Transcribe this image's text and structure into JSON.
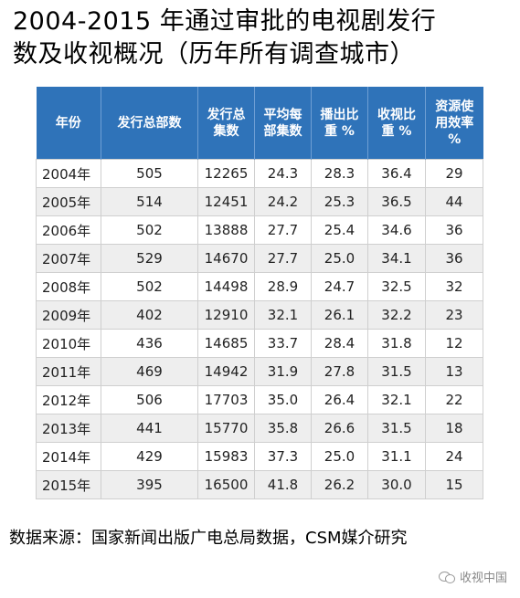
{
  "title": {
    "line1": "2004-2015 年通过审批的电视剧发行",
    "line2": "数及收视概况（历年所有调查城市）"
  },
  "table": {
    "headers": [
      [
        "年份"
      ],
      [
        "发行总部数"
      ],
      [
        "发行总",
        "集数"
      ],
      [
        "平均每",
        "部集数"
      ],
      [
        "播出比",
        "重 %"
      ],
      [
        "收视比",
        "重 %"
      ],
      [
        "资源使",
        "用效率",
        "%"
      ]
    ],
    "rows": [
      [
        "2004年",
        "505",
        "12265",
        "24.3",
        "28.3",
        "36.4",
        "29"
      ],
      [
        "2005年",
        "514",
        "12451",
        "24.2",
        "25.3",
        "36.5",
        "44"
      ],
      [
        "2006年",
        "502",
        "13888",
        "27.7",
        "25.4",
        "34.6",
        "36"
      ],
      [
        "2007年",
        "529",
        "14670",
        "27.7",
        "25.0",
        "34.1",
        "36"
      ],
      [
        "2008年",
        "502",
        "14498",
        "28.9",
        "24.7",
        "32.5",
        "32"
      ],
      [
        "2009年",
        "402",
        "12910",
        "32.1",
        "26.1",
        "32.2",
        "23"
      ],
      [
        "2010年",
        "436",
        "14685",
        "33.7",
        "28.4",
        "31.8",
        "12"
      ],
      [
        "2011年",
        "469",
        "14942",
        "31.9",
        "27.8",
        "31.5",
        "13"
      ],
      [
        "2012年",
        "506",
        "17703",
        "35.0",
        "26.4",
        "32.1",
        "22"
      ],
      [
        "2013年",
        "441",
        "15770",
        "35.8",
        "26.6",
        "31.5",
        "18"
      ],
      [
        "2014年",
        "429",
        "15983",
        "37.3",
        "25.0",
        "31.1",
        "24"
      ],
      [
        "2015年",
        "395",
        "16500",
        "41.8",
        "26.2",
        "30.0",
        "15"
      ]
    ]
  },
  "source": "数据来源：国家新闻出版广电总局数据，CSM媒介研究",
  "watermark": {
    "icon": "wechat-icon",
    "text": "收视中国"
  },
  "colors": {
    "header_bg": "#2f73b9",
    "header_text": "#ffffff",
    "row_alt_bg": "#eeeeee"
  }
}
